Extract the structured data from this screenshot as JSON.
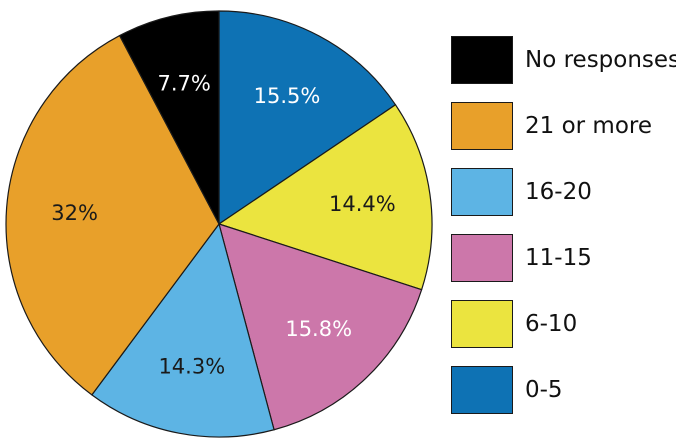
{
  "chart_data": {
    "type": "pie",
    "title": "",
    "slices": [
      {
        "label": "0-5",
        "value": 15.5,
        "display": "15.5%",
        "color": "#0e72b4",
        "text_color": "#ffffff"
      },
      {
        "label": "6-10",
        "value": 14.4,
        "display": "14.4%",
        "color": "#ebe43f",
        "text_color": "#1a1a1a"
      },
      {
        "label": "11-15",
        "value": 15.8,
        "display": "15.8%",
        "color": "#cc77aa",
        "text_color": "#ffffff"
      },
      {
        "label": "16-20",
        "value": 14.3,
        "display": "14.3%",
        "color": "#5db4e4",
        "text_color": "#1a1a1a"
      },
      {
        "label": "21 or more",
        "value": 32.0,
        "display": "32%",
        "color": "#e8a02a",
        "text_color": "#1a1a1a"
      },
      {
        "label": "No responses",
        "value": 7.7,
        "display": "7.7%",
        "color": "#000000",
        "text_color": "#ffffff"
      }
    ],
    "legend": {
      "placement": "right",
      "order": [
        "No responses",
        "21 or more",
        "16-20",
        "11-15",
        "6-10",
        "0-5"
      ]
    },
    "start": "top",
    "direction": "clockwise"
  }
}
